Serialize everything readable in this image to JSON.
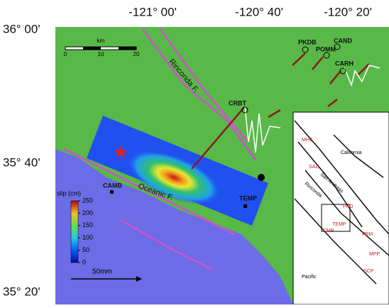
{
  "axes": {
    "top": [
      "-121° 00'",
      "-120° 40'",
      "-120° 20'"
    ],
    "left": [
      "36° 00'",
      "35° 40'",
      "35° 20'"
    ]
  },
  "stations": {
    "pkdb": "PKDB",
    "cand": "CAND",
    "pomm": "POMM",
    "carh": "CARH",
    "crbt": "CRBT",
    "camb": "CAMB",
    "temp": "TEMP"
  },
  "faults": {
    "rinconda": "Rinconda F.",
    "oceanic": "Oceanic F."
  },
  "scale_bar": {
    "unit": "km",
    "labels": [
      "0",
      "10",
      "20"
    ]
  },
  "vector_scale": "50mm",
  "colorbar": {
    "title": "slip (cm)",
    "range": [
      0,
      250
    ],
    "ticks": [
      0,
      50,
      100,
      150,
      200,
      250
    ]
  },
  "inset": {
    "california": "California",
    "pacific": "Pacific",
    "mhc": "MHC",
    "sao": "SAO",
    "san_andreas": "San Andreas",
    "rinconda": "Rinconda",
    "pkd": "PKD",
    "temp": "TEMP",
    "cmb": "CMB",
    "pbm": "PBM",
    "mpp": "MPP",
    "scp": "SCP"
  }
}
